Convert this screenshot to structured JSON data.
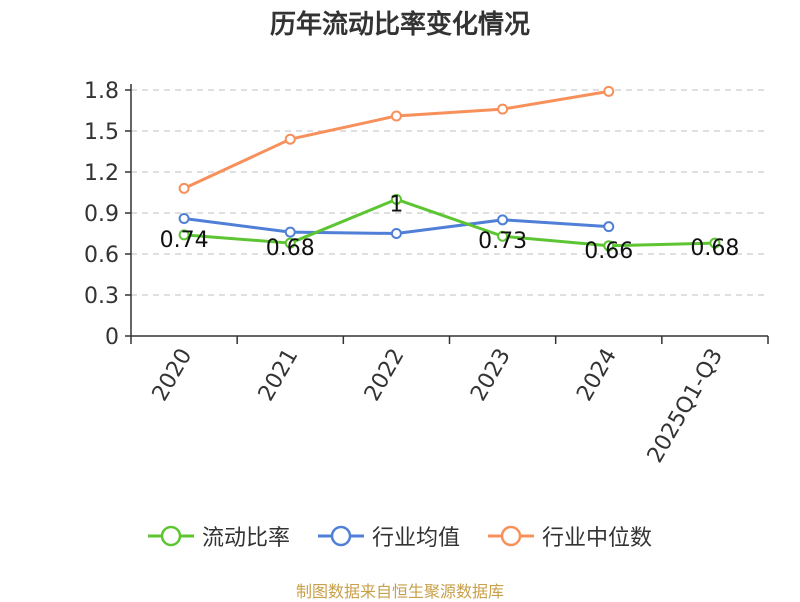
{
  "chart_data": {
    "type": "line",
    "title": "历年流动比率变化情况",
    "categories": [
      "2020",
      "2021",
      "2022",
      "2023",
      "2024",
      "2025Q1-Q3"
    ],
    "ylim": [
      0,
      1.8
    ],
    "yticks": [
      "0",
      "0.3",
      "0.6",
      "0.9",
      "1.2",
      "1.5",
      "1.8"
    ],
    "grid": true,
    "legend_position": "bottom",
    "series": [
      {
        "name": "流动比率",
        "color": "#5cc531",
        "values": [
          0.74,
          0.68,
          1,
          0.73,
          0.66,
          0.68
        ],
        "labels": [
          "0.74",
          "0.68",
          "1",
          "0.73",
          "0.66",
          "0.68"
        ]
      },
      {
        "name": "行业均值",
        "color": "#4f7fd6",
        "values": [
          0.86,
          0.76,
          0.75,
          0.85,
          0.8,
          null
        ]
      },
      {
        "name": "行业中位数",
        "color": "#f7905a",
        "values": [
          1.08,
          1.44,
          1.61,
          1.66,
          1.79,
          null
        ]
      }
    ]
  },
  "source_note": "制图数据来自恒生聚源数据库"
}
